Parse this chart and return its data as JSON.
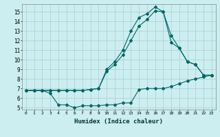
{
  "xlabel": "Humidex (Indice chaleur)",
  "ylabel": "",
  "bg_color": "#cceef0",
  "grid_color": "#aacccc",
  "line_color": "#006666",
  "xlim": [
    -0.5,
    23.5
  ],
  "ylim": [
    4.8,
    15.8
  ],
  "yticks": [
    5,
    6,
    7,
    8,
    9,
    10,
    11,
    12,
    13,
    14,
    15
  ],
  "xticks": [
    0,
    1,
    2,
    3,
    4,
    5,
    6,
    7,
    8,
    9,
    10,
    11,
    12,
    13,
    14,
    15,
    16,
    17,
    18,
    19,
    20,
    21,
    22,
    23
  ],
  "series": [
    {
      "x": [
        0,
        1,
        2,
        3,
        4,
        5,
        6,
        7,
        8,
        9,
        10,
        11,
        12,
        13,
        14,
        15,
        16,
        17,
        18,
        19,
        20,
        21,
        22,
        23
      ],
      "y": [
        6.8,
        6.8,
        6.8,
        6.5,
        5.3,
        5.3,
        5.0,
        5.2,
        5.2,
        5.2,
        5.3,
        5.3,
        5.5,
        5.5,
        6.9,
        7.0,
        7.0,
        7.0,
        7.2,
        7.5,
        7.8,
        8.0,
        8.2,
        8.4
      ]
    },
    {
      "x": [
        0,
        1,
        2,
        3,
        4,
        5,
        6,
        7,
        8,
        9,
        10,
        11,
        12,
        13,
        14,
        15,
        16,
        17,
        18,
        19,
        20,
        21,
        22,
        23
      ],
      "y": [
        6.8,
        6.8,
        6.8,
        6.8,
        6.8,
        6.8,
        6.8,
        6.8,
        6.9,
        7.0,
        8.8,
        9.5,
        10.5,
        12.0,
        13.5,
        14.2,
        15.1,
        15.0,
        12.5,
        11.2,
        9.8,
        9.5,
        8.4,
        8.4
      ]
    },
    {
      "x": [
        0,
        1,
        2,
        3,
        4,
        5,
        6,
        7,
        8,
        9,
        10,
        11,
        12,
        13,
        14,
        15,
        16,
        17,
        18,
        19,
        20,
        21,
        22,
        23
      ],
      "y": [
        6.8,
        6.8,
        6.8,
        6.8,
        6.8,
        6.8,
        6.8,
        6.8,
        6.9,
        7.0,
        9.0,
        9.8,
        11.0,
        13.0,
        14.4,
        14.8,
        15.5,
        15.0,
        11.8,
        11.2,
        9.8,
        9.5,
        8.4,
        8.4
      ]
    }
  ]
}
